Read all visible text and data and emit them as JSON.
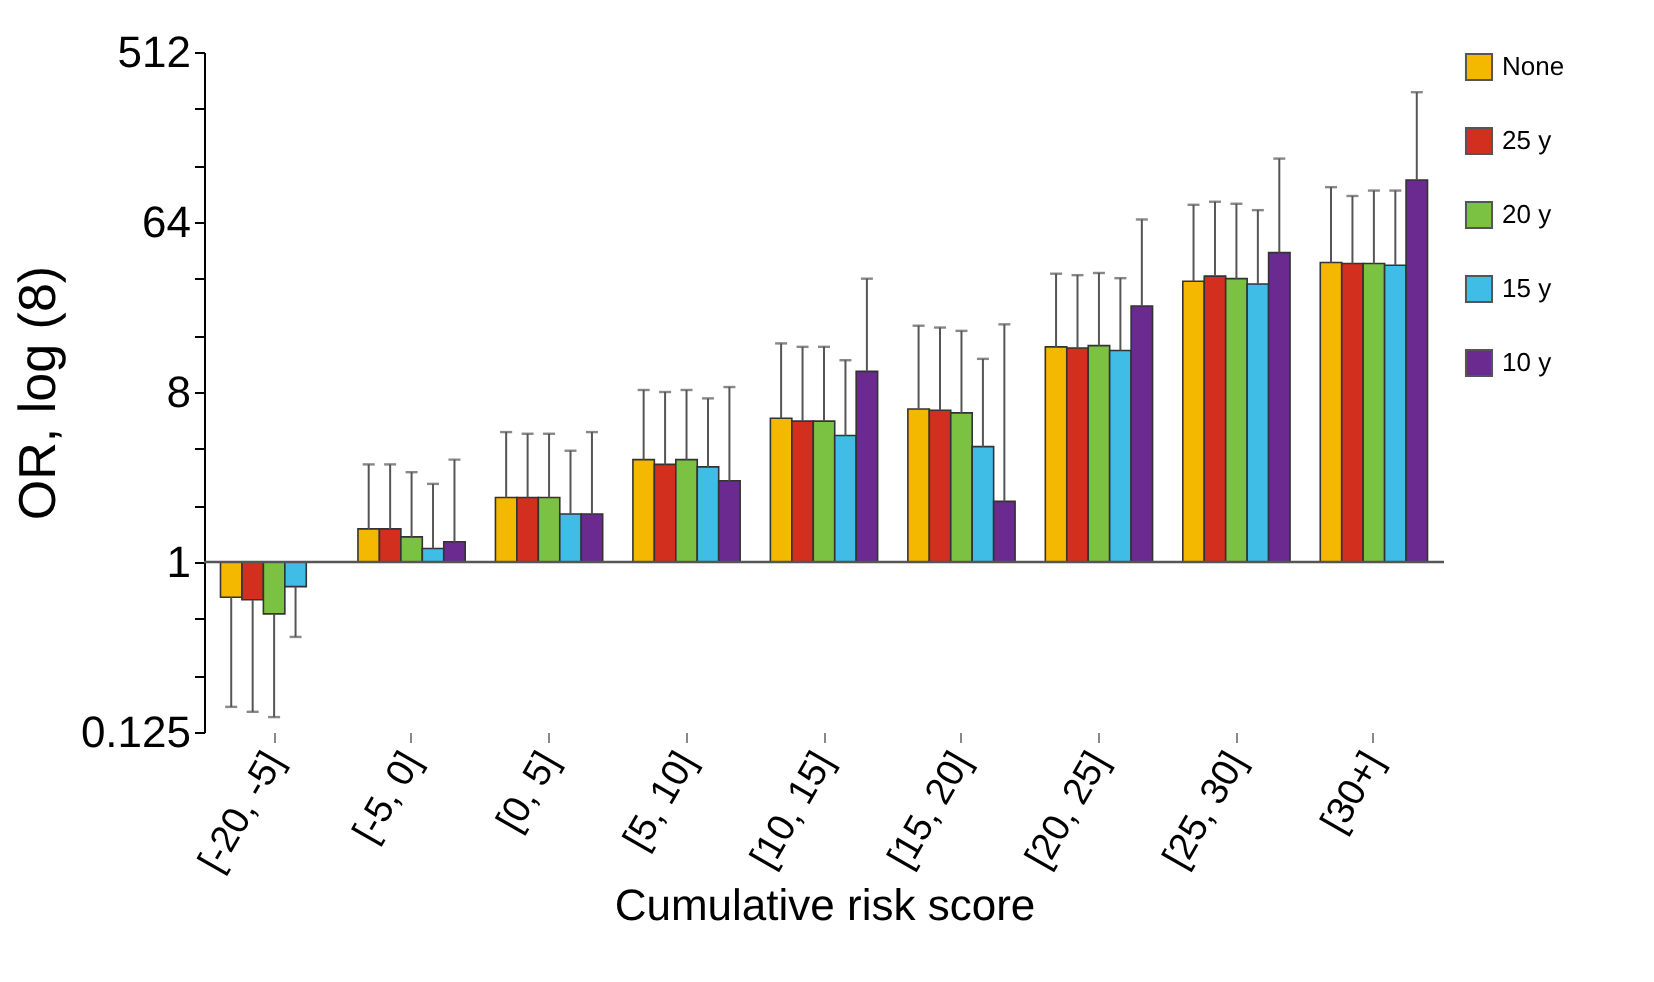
{
  "chart_data": {
    "type": "bar",
    "xlabel": "Cumulative risk score",
    "ylabel": "OR, log (8)",
    "log": true,
    "categories": [
      "[-20, -5]",
      "[-5, 0]",
      "[0, 5]",
      "[5, 10]",
      "[10, 15]",
      "[15, 20]",
      "[20, 25]",
      "[25, 30]",
      "[30+]"
    ],
    "series": [
      {
        "name": "None",
        "color": "#f5b800",
        "base": [
          1,
          1,
          1,
          1,
          1,
          1,
          1,
          1,
          1
        ],
        "values": [
          -0.35,
          0.5,
          1.2,
          2.5,
          4.8,
          5.5,
          12.9,
          30,
          38
        ],
        "errors": [
          [
            0.17,
            0.65
          ],
          [
            1.5,
            3.3
          ],
          [
            2.2,
            4.9
          ],
          [
            3.5,
            8.2
          ],
          [
            5.8,
            14.5
          ],
          [
            6.5,
            18
          ],
          [
            13.9,
            34
          ],
          [
            31,
            79
          ],
          [
            39,
            98
          ]
        ]
      },
      {
        "name": "25 y",
        "color": "#d32f1e",
        "base": [
          1,
          1,
          1,
          1,
          1,
          1,
          1,
          1,
          1
        ],
        "values": [
          -0.37,
          0.5,
          1.2,
          2.3,
          4.6,
          5.4,
          12.7,
          32,
          37.5
        ],
        "errors": [
          [
            0.16,
            0.63
          ],
          [
            1.5,
            3.3
          ],
          [
            2.2,
            4.8
          ],
          [
            3.3,
            8.0
          ],
          [
            5.6,
            13.9
          ],
          [
            6.4,
            17.6
          ],
          [
            13.7,
            33.4
          ],
          [
            33,
            82
          ],
          [
            38.5,
            88
          ]
        ]
      },
      {
        "name": "20 y",
        "color": "#7cc242",
        "base": [
          1,
          1,
          1,
          1,
          1,
          1,
          1,
          1,
          1
        ],
        "values": [
          -0.47,
          0.36,
          1.2,
          2.5,
          4.6,
          5.2,
          13.1,
          31,
          37.5
        ],
        "errors": [
          [
            0.15,
            0.53
          ],
          [
            1.36,
            3.0
          ],
          [
            2.2,
            4.8
          ],
          [
            3.5,
            8.2
          ],
          [
            5.6,
            13.9
          ],
          [
            6.2,
            16.9
          ],
          [
            14.1,
            34.3
          ],
          [
            32,
            80
          ],
          [
            38.5,
            94
          ]
        ]
      },
      {
        "name": "15 y",
        "color": "#3fbde6",
        "base": [
          1,
          1,
          1,
          1,
          1,
          1,
          1,
          1,
          1
        ],
        "values": [
          -0.26,
          0.18,
          0.8,
          2.2,
          3.7,
          3.1,
          12.3,
          29,
          36.7
        ],
        "errors": [
          [
            0.4,
            0.74
          ],
          [
            1.18,
            2.6
          ],
          [
            1.8,
            3.9
          ],
          [
            3.2,
            7.4
          ],
          [
            4.7,
            11.8
          ],
          [
            4.1,
            12
          ],
          [
            13.3,
            32.2
          ],
          [
            30,
            74
          ],
          [
            37.7,
            94
          ]
        ]
      },
      {
        "name": "10 y",
        "color": "#6a2a8f",
        "base": [
          null,
          1,
          1,
          1,
          1,
          1,
          1,
          1,
          1
        ],
        "values": [
          null,
          0.28,
          0.8,
          1.7,
          9.3,
          1.1,
          21.9,
          43,
          106
        ],
        "errors": [
          null,
          [
            1.28,
            3.5
          ],
          [
            1.8,
            4.9
          ],
          [
            2.7,
            8.5
          ],
          [
            10.3,
            32
          ],
          [
            2.1,
            18.3
          ],
          [
            22.9,
            66
          ],
          [
            44,
            139
          ],
          [
            107,
            313
          ]
        ]
      }
    ],
    "ylim": [
      0.125,
      512
    ],
    "yticks": [
      0.125,
      {
        "value": 0.25,
        "label": null
      },
      {
        "value": 0.5,
        "label": null
      },
      1,
      {
        "value": 2,
        "label": null
      },
      {
        "value": 4,
        "label": null
      },
      8,
      {
        "value": 16,
        "label": null
      },
      {
        "value": 32,
        "label": null
      },
      64,
      {
        "value": 128,
        "label": null
      },
      {
        "value": 256,
        "label": null
      },
      512
    ],
    "ref_lines": [
      {
        "axis": "y",
        "value": 1,
        "color": "#555555",
        "line_style": "solid"
      }
    ],
    "grid": false,
    "legend": "top right"
  }
}
